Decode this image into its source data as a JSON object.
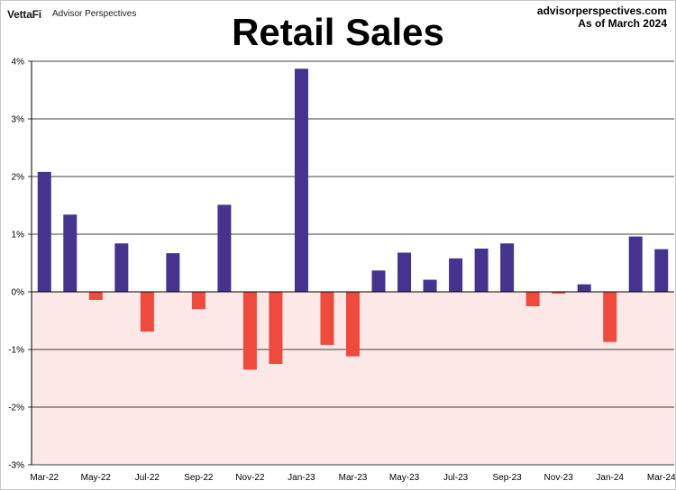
{
  "header": {
    "logo_text": "VettaFi",
    "publisher": "Advisor Perspectives",
    "site": "advisorperspectives.com",
    "as_of": "As of March 2024"
  },
  "colors": {
    "positive": "#44338f",
    "negative": "#f04a3d",
    "negative_zone": "#fde8e8",
    "grid": "#000000"
  },
  "chart_data": {
    "type": "bar",
    "title": "Retail Sales",
    "xlabel": "",
    "ylabel": "",
    "ylim": [
      -3,
      4
    ],
    "yticks": [
      -3,
      -2,
      -1,
      0,
      1,
      2,
      3,
      4
    ],
    "ytick_labels": [
      "-3%",
      "-2%",
      "-1%",
      "0%",
      "1%",
      "2%",
      "3%",
      "4%"
    ],
    "categories": [
      "Mar-22",
      "Apr-22",
      "May-22",
      "Jun-22",
      "Jul-22",
      "Aug-22",
      "Sep-22",
      "Oct-22",
      "Nov-22",
      "Dec-22",
      "Jan-23",
      "Feb-23",
      "Mar-23",
      "Apr-23",
      "May-23",
      "Jun-23",
      "Jul-23",
      "Aug-23",
      "Sep-23",
      "Oct-23",
      "Nov-23",
      "Dec-23",
      "Jan-24",
      "Feb-24",
      "Mar-24"
    ],
    "xtick_labels": [
      "Mar-22",
      "May-22",
      "Jul-22",
      "Sep-22",
      "Nov-22",
      "Jan-23",
      "Mar-23",
      "May-23",
      "Jul-23",
      "Sep-23",
      "Nov-23",
      "Jan-24",
      "Mar-24"
    ],
    "values": [
      2.08,
      1.34,
      -0.14,
      0.84,
      -0.69,
      0.67,
      -0.3,
      1.51,
      -1.35,
      -1.25,
      3.87,
      -0.92,
      -1.12,
      0.37,
      0.68,
      0.21,
      0.58,
      0.75,
      0.84,
      -0.25,
      -0.03,
      0.13,
      -0.87,
      0.96,
      0.74
    ],
    "grid": true
  }
}
